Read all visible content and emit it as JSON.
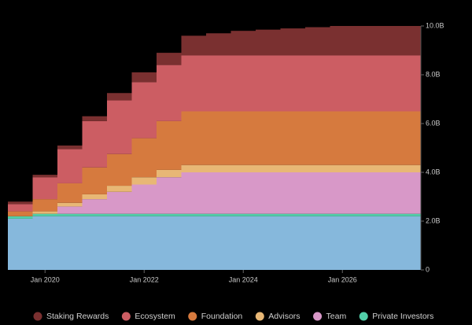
{
  "chart_data": {
    "type": "stepped-stacked-area",
    "x": [
      "2019-04",
      "2019-10",
      "2020-04",
      "2020-10",
      "2021-04",
      "2021-10",
      "2022-04",
      "2022-10",
      "2023-04",
      "2023-10",
      "2024-04",
      "2024-10",
      "2025-04",
      "2025-10"
    ],
    "xlim": [
      "2019-04",
      "2027-08"
    ],
    "xticks": [
      {
        "value": "2020-01",
        "label": "Jan 2020"
      },
      {
        "value": "2022-01",
        "label": "Jan 2022"
      },
      {
        "value": "2024-01",
        "label": "Jan 2024"
      },
      {
        "value": "2026-01",
        "label": "Jan 2026"
      }
    ],
    "ylim": [
      0,
      10
    ],
    "yticks": [
      0,
      {
        "value": 2,
        "label": "2.0B"
      },
      {
        "value": 4,
        "label": "4.0B"
      },
      {
        "value": 6,
        "label": "6.0B"
      },
      {
        "value": 8,
        "label": "8.0B"
      },
      {
        "value": 10,
        "label": "10.0B"
      }
    ],
    "series": [
      {
        "name": null,
        "color": "#86b8dc",
        "values": [
          2.1,
          2.2,
          2.2,
          2.2,
          2.2,
          2.2,
          2.2,
          2.2,
          2.2,
          2.2,
          2.2,
          2.2,
          2.2,
          2.2
        ]
      },
      {
        "name": "Private Investors",
        "color": "#52cfa9",
        "values": [
          0.1,
          0.1,
          0.1,
          0.1,
          0.1,
          0.1,
          0.1,
          0.1,
          0.1,
          0.1,
          0.1,
          0.1,
          0.1,
          0.1
        ]
      },
      {
        "name": "Team",
        "color": "#d898c8",
        "values": [
          0,
          0,
          0.3,
          0.6,
          0.9,
          1.2,
          1.5,
          1.7,
          1.7,
          1.7,
          1.7,
          1.7,
          1.7,
          1.7
        ]
      },
      {
        "name": "Advisors",
        "color": "#e8b775",
        "values": [
          0,
          0.1,
          0.15,
          0.2,
          0.25,
          0.3,
          0.3,
          0.3,
          0.3,
          0.3,
          0.3,
          0.3,
          0.3,
          0.3
        ]
      },
      {
        "name": "Foundation",
        "color": "#d67a3e",
        "values": [
          0.2,
          0.5,
          0.8,
          1.1,
          1.3,
          1.6,
          2.0,
          2.2,
          2.2,
          2.2,
          2.2,
          2.2,
          2.2,
          2.2
        ]
      },
      {
        "name": "Ecosystem",
        "color": "#cc5d63",
        "values": [
          0.3,
          0.9,
          1.4,
          1.9,
          2.2,
          2.3,
          2.3,
          2.3,
          2.3,
          2.3,
          2.3,
          2.3,
          2.3,
          2.3
        ]
      },
      {
        "name": "Staking Rewards",
        "color": "#7a3030",
        "values": [
          0.1,
          0.1,
          0.15,
          0.2,
          0.3,
          0.4,
          0.5,
          0.8,
          0.9,
          1.0,
          1.05,
          1.1,
          1.15,
          1.2
        ]
      }
    ]
  }
}
